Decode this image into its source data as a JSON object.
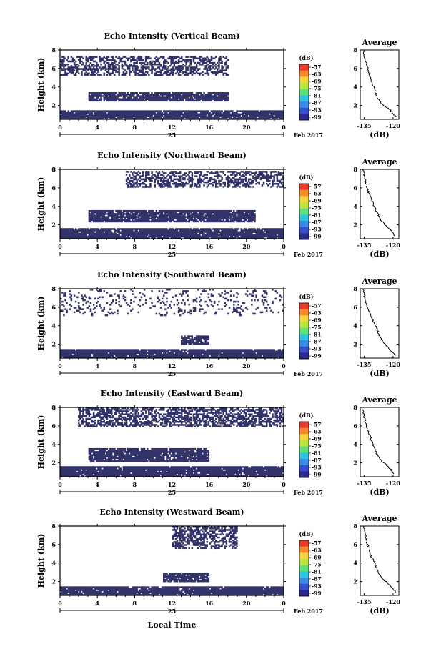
{
  "page": {
    "xaxis_label": "Local Time"
  },
  "chart_data": [
    {
      "type": "heatmap",
      "title": "Echo Intensity (Vertical Beam)",
      "ylabel": "Height (km)",
      "xticks": [
        "0",
        "4",
        "8",
        "12",
        "16",
        "20",
        "0"
      ],
      "yticks": [
        "2",
        "4",
        "6",
        "8"
      ],
      "xlim": [
        0,
        24
      ],
      "ylim": [
        0.5,
        8
      ],
      "date_label": "25",
      "month_label": "Feb 2017",
      "colorbar": {
        "unit": "(dB)",
        "labels": [
          "-57",
          "-63",
          "-69",
          "-75",
          "-81",
          "-87",
          "-93",
          "-99"
        ]
      },
      "pattern": {
        "lowTop": 1.5,
        "lowCover": 0.95,
        "midBottom": 2.4,
        "midTop": 3.4,
        "midStart": 3,
        "midEnd": 18,
        "midCover": 0.88,
        "highBottom": 5.3,
        "highTop": 7.4,
        "highStart": 0,
        "highEnd": 18,
        "highCover": 0.55
      },
      "average": {
        "title": "Average",
        "xlabel": "(dB)",
        "xticks": [
          "-135",
          "-120"
        ],
        "yticks": [
          "2",
          "4",
          "6",
          "8"
        ],
        "xlim": [
          -137,
          -117
        ],
        "ylim": [
          0.5,
          8
        ],
        "profile": [
          [
            0.8,
            -118.5
          ],
          [
            1.5,
            -121.5
          ],
          [
            2.2,
            -126
          ],
          [
            3.0,
            -128.5
          ],
          [
            3.7,
            -129.5
          ],
          [
            4.5,
            -131
          ],
          [
            5.3,
            -132.5
          ],
          [
            6.0,
            -133.2
          ],
          [
            7.0,
            -134.5
          ],
          [
            8.0,
            -135.5
          ]
        ]
      }
    },
    {
      "type": "heatmap",
      "title": "Echo Intensity (Northward Beam)",
      "ylabel": "Height (km)",
      "xticks": [
        "0",
        "4",
        "8",
        "12",
        "16",
        "20",
        "0"
      ],
      "yticks": [
        "2",
        "4",
        "6",
        "8"
      ],
      "xlim": [
        0,
        24
      ],
      "ylim": [
        0.5,
        8
      ],
      "date_label": "25",
      "month_label": "Feb 2017",
      "colorbar": {
        "unit": "(dB)",
        "labels": [
          "-57",
          "-63",
          "-69",
          "-75",
          "-81",
          "-87",
          "-93",
          "-99"
        ]
      },
      "pattern": {
        "lowTop": 1.6,
        "lowCover": 0.95,
        "midBottom": 2.3,
        "midTop": 3.6,
        "midStart": 3,
        "midEnd": 21,
        "midCover": 0.9,
        "highBottom": 6.0,
        "highTop": 7.9,
        "highStart": 7,
        "highEnd": 24,
        "highCover": 0.5
      },
      "average": {
        "title": "Average",
        "xlabel": "(dB)",
        "xticks": [
          "-135",
          "-120"
        ],
        "yticks": [
          "2",
          "4",
          "6",
          "8"
        ],
        "xlim": [
          -137,
          -117
        ],
        "ylim": [
          0.5,
          8
        ],
        "profile": [
          [
            0.8,
            -119
          ],
          [
            1.4,
            -121
          ],
          [
            2.0,
            -124.5
          ],
          [
            2.8,
            -127
          ],
          [
            3.6,
            -129
          ],
          [
            4.4,
            -130.5
          ],
          [
            5.2,
            -132.2
          ],
          [
            6.0,
            -133.5
          ],
          [
            7.0,
            -134.5
          ],
          [
            8.0,
            -135.5
          ]
        ]
      }
    },
    {
      "type": "heatmap",
      "title": "Echo Intensity (Southward Beam)",
      "ylabel": "Height (km)",
      "xticks": [
        "0",
        "4",
        "8",
        "12",
        "16",
        "20",
        "0"
      ],
      "yticks": [
        "2",
        "4",
        "6",
        "8"
      ],
      "xlim": [
        0,
        24
      ],
      "ylim": [
        0.5,
        8
      ],
      "date_label": "25",
      "month_label": "Feb 2017",
      "colorbar": {
        "unit": "(dB)",
        "labels": [
          "-57",
          "-63",
          "-69",
          "-75",
          "-81",
          "-87",
          "-93",
          "-99"
        ]
      },
      "pattern": {
        "lowTop": 1.5,
        "lowCover": 0.95,
        "midBottom": 2.0,
        "midTop": 3.0,
        "midStart": 13,
        "midEnd": 16,
        "midCover": 0.8,
        "highBottom": 5.0,
        "highTop": 8.0,
        "highStart": 0,
        "highEnd": 24,
        "highCover": 0.15
      },
      "average": {
        "title": "Average",
        "xlabel": "(dB)",
        "xticks": [
          "-135",
          "-120"
        ],
        "yticks": [
          "2",
          "4",
          "6",
          "8"
        ],
        "xlim": [
          -137,
          -117
        ],
        "ylim": [
          0.5,
          8
        ],
        "profile": [
          [
            0.8,
            -118.5
          ],
          [
            1.5,
            -122
          ],
          [
            2.2,
            -125
          ],
          [
            3.0,
            -127.5
          ],
          [
            3.8,
            -128.5
          ],
          [
            4.6,
            -130.5
          ],
          [
            5.4,
            -132.3
          ],
          [
            6.2,
            -133.5
          ],
          [
            7.0,
            -134.5
          ],
          [
            8.0,
            -135.8
          ]
        ]
      }
    },
    {
      "type": "heatmap",
      "title": "Echo Intensity (Eastward Beam)",
      "ylabel": "Height (km)",
      "xticks": [
        "0",
        "4",
        "8",
        "12",
        "16",
        "20",
        "0"
      ],
      "yticks": [
        "2",
        "4",
        "6",
        "8"
      ],
      "xlim": [
        0,
        24
      ],
      "ylim": [
        0.5,
        8
      ],
      "date_label": "25",
      "month_label": "Feb 2017",
      "colorbar": {
        "unit": "(dB)",
        "labels": [
          "-57",
          "-63",
          "-69",
          "-75",
          "-81",
          "-87",
          "-93",
          "-99"
        ]
      },
      "pattern": {
        "lowTop": 1.6,
        "lowCover": 0.95,
        "midBottom": 2.2,
        "midTop": 3.6,
        "midStart": 3,
        "midEnd": 16,
        "midCover": 0.9,
        "highBottom": 5.8,
        "highTop": 8.0,
        "highStart": 2,
        "highEnd": 24,
        "highCover": 0.6
      },
      "average": {
        "title": "Average",
        "xlabel": "(dB)",
        "xticks": [
          "-135",
          "-120"
        ],
        "yticks": [
          "2",
          "4",
          "6",
          "8"
        ],
        "xlim": [
          -137,
          -117
        ],
        "ylim": [
          0.5,
          8
        ],
        "profile": [
          [
            0.8,
            -119.5
          ],
          [
            1.5,
            -122
          ],
          [
            2.2,
            -126
          ],
          [
            3.0,
            -128.5
          ],
          [
            3.8,
            -130
          ],
          [
            4.6,
            -131.5
          ],
          [
            5.4,
            -132.8
          ],
          [
            6.2,
            -134
          ],
          [
            7.0,
            -135
          ],
          [
            8.0,
            -136
          ]
        ]
      }
    },
    {
      "type": "heatmap",
      "title": "Echo Intensity (Westward Beam)",
      "ylabel": "Height (km)",
      "xticks": [
        "0",
        "4",
        "8",
        "12",
        "16",
        "20",
        "0"
      ],
      "yticks": [
        "2",
        "4",
        "6",
        "8"
      ],
      "xlim": [
        0,
        24
      ],
      "ylim": [
        0.5,
        8
      ],
      "date_label": "25",
      "month_label": "Feb 2017",
      "colorbar": {
        "unit": "(dB)",
        "labels": [
          "-57",
          "-63",
          "-69",
          "-75",
          "-81",
          "-87",
          "-93",
          "-99"
        ]
      },
      "pattern": {
        "lowTop": 1.5,
        "lowCover": 0.95,
        "midBottom": 2.0,
        "midTop": 2.9,
        "midStart": 11,
        "midEnd": 16,
        "midCover": 0.85,
        "highBottom": 5.5,
        "highTop": 8.0,
        "highStart": 12,
        "highEnd": 19,
        "highCover": 0.55
      },
      "average": {
        "title": "Average",
        "xlabel": "(dB)",
        "xticks": [
          "-135",
          "-120"
        ],
        "yticks": [
          "2",
          "4",
          "6",
          "8"
        ],
        "xlim": [
          -137,
          -117
        ],
        "ylim": [
          0.5,
          8
        ],
        "profile": [
          [
            0.8,
            -118.5
          ],
          [
            1.5,
            -121
          ],
          [
            2.3,
            -125.5
          ],
          [
            3.2,
            -128
          ],
          [
            4.0,
            -129.5
          ],
          [
            4.8,
            -131.5
          ],
          [
            5.6,
            -132.5
          ],
          [
            6.4,
            -133.8
          ],
          [
            7.2,
            -134.5
          ],
          [
            8.0,
            -135.5
          ]
        ]
      }
    }
  ]
}
